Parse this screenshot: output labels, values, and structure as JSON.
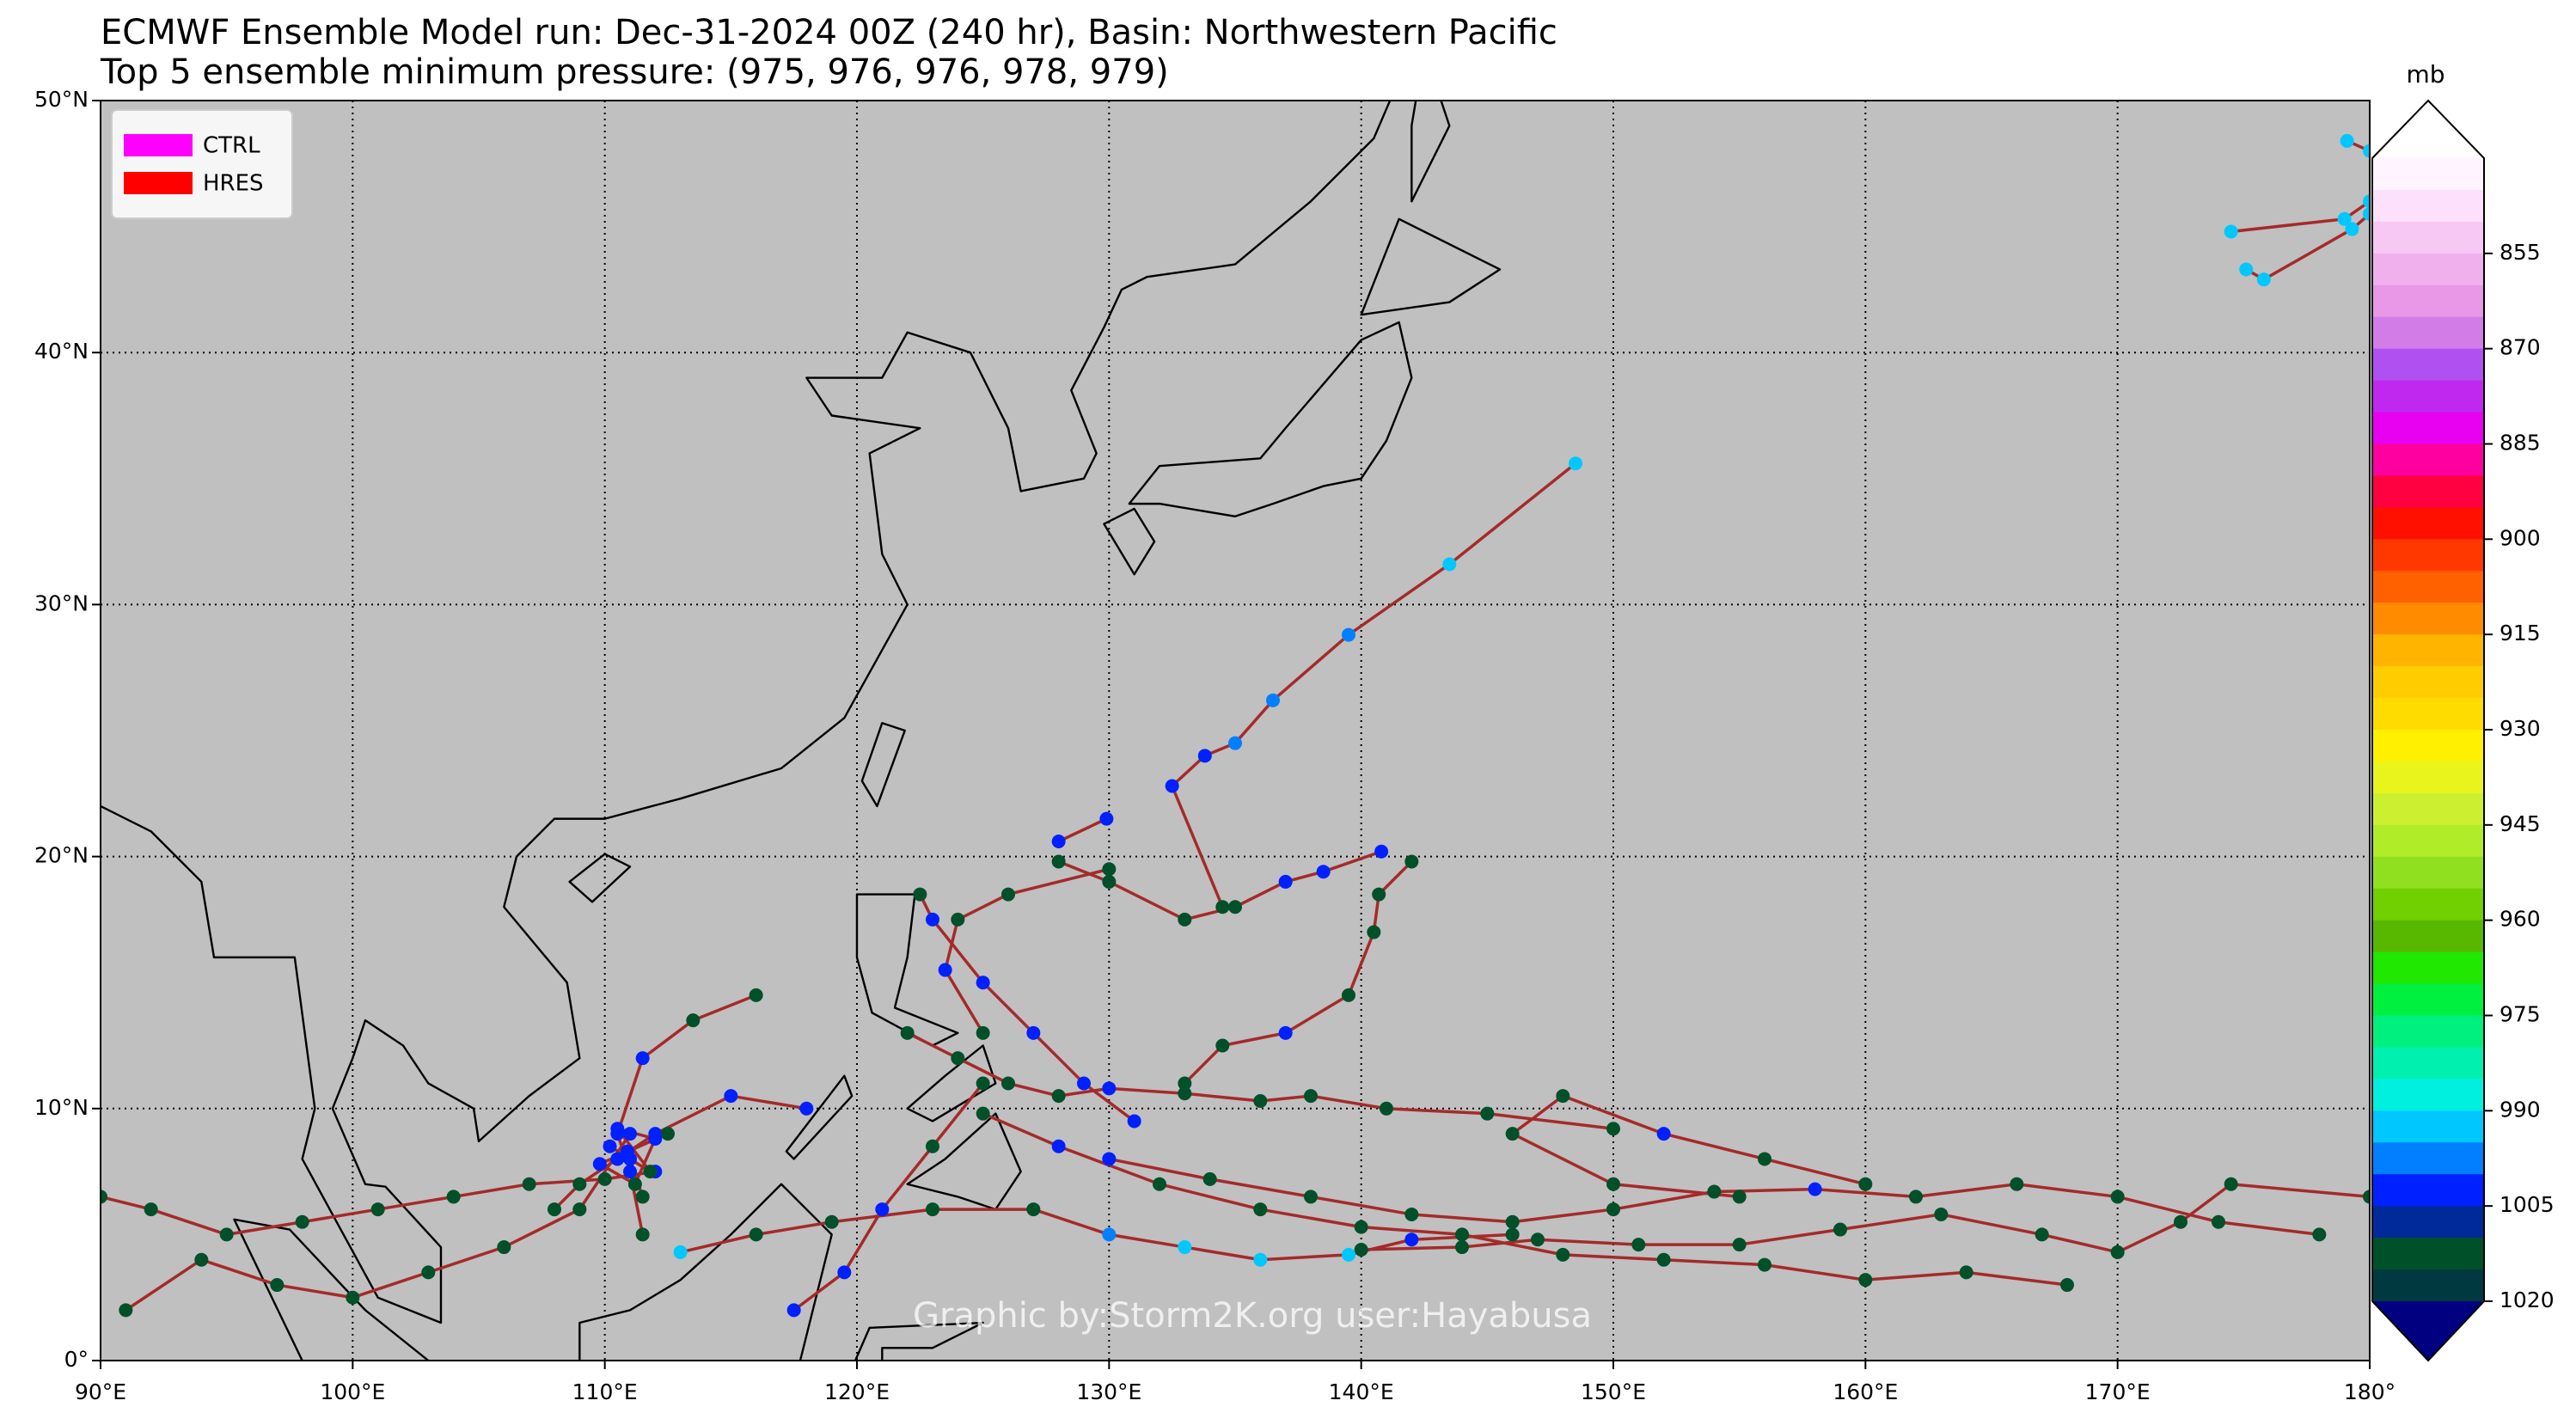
{
  "header": {
    "title": "ECMWF Ensemble Model run: Dec-31-2024 00Z (240 hr), Basin: Northwestern Pacific",
    "subtitle": "Top 5 ensemble minimum pressure: (975, 976, 976, 978, 979)"
  },
  "map": {
    "lonlim": [
      90,
      180
    ],
    "latlim": [
      0,
      50
    ],
    "grid": true,
    "lon_ticks": [
      {
        "value": 90,
        "label": "90°E"
      },
      {
        "value": 100,
        "label": "100°E"
      },
      {
        "value": 110,
        "label": "110°E"
      },
      {
        "value": 120,
        "label": "120°E"
      },
      {
        "value": 130,
        "label": "130°E"
      },
      {
        "value": 140,
        "label": "140°E"
      },
      {
        "value": 150,
        "label": "150°E"
      },
      {
        "value": 160,
        "label": "160°E"
      },
      {
        "value": 170,
        "label": "170°E"
      },
      {
        "value": 180,
        "label": "180°"
      }
    ],
    "lat_ticks": [
      {
        "value": 0,
        "label": "0°"
      },
      {
        "value": 10,
        "label": "10°N"
      },
      {
        "value": 20,
        "label": "20°N"
      },
      {
        "value": 30,
        "label": "30°N"
      },
      {
        "value": 40,
        "label": "40°N"
      },
      {
        "value": 50,
        "label": "50°N"
      }
    ]
  },
  "legend": [
    {
      "name": "CTRL",
      "color": "#ff00ff"
    },
    {
      "name": "HRES",
      "color": "#ff0000"
    }
  ],
  "track_color": "#a52a2a",
  "tracks": [
    {
      "lon": [
        134.5,
        132.5,
        133.8,
        135,
        136.5,
        139.5,
        143.5,
        148.5
      ],
      "lat": [
        18,
        22.8,
        24,
        24.5,
        26.2,
        28.8,
        31.6,
        35.6
      ],
      "p": [
        1012,
        1003,
        1003,
        997,
        997,
        997,
        990,
        990
      ]
    },
    {
      "lon": [
        174.5,
        179,
        180
      ],
      "lat": [
        44.8,
        45.3,
        46
      ],
      "p": [
        990,
        990,
        990
      ]
    },
    {
      "lon": [
        175.1,
        175.8,
        179.3,
        180
      ],
      "lat": [
        43.3,
        42.9,
        44.9,
        45.5
      ],
      "p": [
        990,
        990,
        990,
        990
      ]
    },
    {
      "lon": [
        179.1,
        180
      ],
      "lat": [
        48.4,
        48
      ],
      "p": [
        990,
        990
      ]
    },
    {
      "lon": [
        128,
        129.9
      ],
      "lat": [
        20.6,
        21.5
      ],
      "p": [
        1003,
        1003
      ]
    },
    {
      "lon": [
        180,
        174.5,
        172.5,
        170,
        167,
        163,
        159,
        155,
        151,
        147,
        144,
        140
      ],
      "lat": [
        6.5,
        7,
        5.5,
        4.3,
        5,
        5.8,
        5.2,
        4.6,
        4.6,
        4.8,
        4.5,
        4.4
      ],
      "p": [
        1012,
        1012,
        1012,
        1012,
        1012,
        1012,
        1012,
        1012,
        1012,
        1012,
        1012,
        1012
      ]
    },
    {
      "lon": [
        178,
        174,
        170,
        166,
        162,
        158,
        154,
        150,
        146,
        142,
        138,
        134,
        130
      ],
      "lat": [
        5,
        5.5,
        6.5,
        7,
        6.5,
        6.8,
        6.7,
        6,
        5.5,
        5.8,
        6.5,
        7.2,
        8
      ],
      "p": [
        1012,
        1012,
        1012,
        1012,
        1012,
        1003,
        1012,
        1012,
        1012,
        1012,
        1012,
        1012,
        1003
      ]
    },
    {
      "lon": [
        168,
        164,
        160,
        156,
        152,
        148,
        144,
        140,
        136,
        132,
        128,
        125
      ],
      "lat": [
        3,
        3.5,
        3.2,
        3.8,
        4,
        4.2,
        5,
        5.3,
        6,
        7,
        8.5,
        9.8
      ],
      "p": [
        1012,
        1012,
        1012,
        1012,
        1012,
        1012,
        1012,
        1012,
        1012,
        1012,
        1003,
        1012
      ]
    },
    {
      "lon": [
        150,
        145,
        141,
        138,
        136,
        133,
        130,
        128,
        126,
        124,
        122
      ],
      "lat": [
        9.2,
        9.8,
        10,
        10.5,
        10.3,
        10.6,
        10.8,
        10.5,
        11,
        12,
        13
      ],
      "p": [
        1012,
        1012,
        1012,
        1012,
        1012,
        1012,
        1003,
        1012,
        1012,
        1012,
        1012
      ]
    },
    {
      "lon": [
        142,
        140.7,
        140.5,
        139.5,
        137,
        134.5,
        133
      ],
      "lat": [
        19.8,
        18.5,
        17,
        14.5,
        13,
        12.5,
        11
      ],
      "p": [
        1012,
        1012,
        1012,
        1012,
        1003,
        1012,
        1012
      ]
    },
    {
      "lon": [
        140.8,
        138.5,
        137,
        135,
        133,
        130,
        128
      ],
      "lat": [
        20.2,
        19.4,
        19,
        18,
        17.5,
        19,
        19.8
      ],
      "p": [
        1003,
        1003,
        1003,
        1012,
        1012,
        1012,
        1012
      ]
    },
    {
      "lon": [
        118,
        115,
        112,
        110.5,
        109,
        108
      ],
      "lat": [
        10,
        10.5,
        9,
        8,
        7,
        6
      ],
      "p": [
        1003,
        1003,
        1003,
        1003,
        1012,
        1012
      ]
    },
    {
      "lon": [
        116,
        113.5,
        111.5,
        110.5,
        111,
        111.5
      ],
      "lat": [
        14.5,
        13.5,
        12,
        9,
        7.5,
        5
      ],
      "p": [
        1012,
        1012,
        1003,
        1003,
        1003,
        1012
      ]
    },
    {
      "lon": [
        112,
        110,
        107,
        104,
        101,
        98,
        95,
        92,
        90
      ],
      "lat": [
        7.5,
        7.2,
        7,
        6.5,
        6,
        5.5,
        5,
        6,
        6.5
      ],
      "p": [
        1003,
        1012,
        1012,
        1012,
        1012,
        1012,
        1012,
        1012,
        1012
      ]
    },
    {
      "lon": [
        111,
        109,
        106,
        103,
        100,
        97,
        94,
        91
      ],
      "lat": [
        9,
        6,
        4.5,
        3.5,
        2.5,
        3,
        4,
        2
      ],
      "p": [
        1003,
        1012,
        1012,
        1012,
        1012,
        1012,
        1012,
        1012
      ]
    },
    {
      "lon": [
        125,
        123,
        121,
        119.5,
        117.5
      ],
      "lat": [
        11,
        8.5,
        6,
        3.5,
        2
      ],
      "p": [
        1012,
        1012,
        1003,
        1003,
        1003
      ]
    },
    {
      "lon": [
        131,
        129,
        127,
        125,
        123,
        122.5
      ],
      "lat": [
        9.5,
        11,
        13,
        15,
        17.5,
        18.5
      ],
      "p": [
        1003,
        1003,
        1003,
        1003,
        1003,
        1012
      ]
    },
    {
      "lon": [
        146,
        142,
        139.5,
        136,
        133,
        130,
        127,
        123,
        119,
        116,
        113
      ],
      "lat": [
        5,
        4.8,
        4.2,
        4,
        4.5,
        5,
        6,
        6,
        5.5,
        5,
        4.3
      ],
      "p": [
        1012,
        1003,
        990,
        990,
        990,
        997,
        1012,
        1012,
        1012,
        1012,
        990
      ]
    },
    {
      "lon": [
        130,
        126,
        124,
        123.5,
        125
      ],
      "lat": [
        19.5,
        18.5,
        17.5,
        15.5,
        13
      ],
      "p": [
        1012,
        1012,
        1012,
        1003,
        1012
      ]
    },
    {
      "lon": [
        111,
        110.2,
        111.8,
        110.5,
        112,
        111.2,
        109.8,
        112.5,
        110.9,
        111.5
      ],
      "lat": [
        8,
        8.5,
        7.5,
        9.2,
        8.8,
        7,
        7.8,
        9,
        8.3,
        6.5
      ],
      "p": [
        1003,
        1003,
        1012,
        1003,
        1003,
        1012,
        1003,
        1012,
        1003,
        1012
      ]
    },
    {
      "lon": [
        160,
        156,
        152,
        148,
        146,
        150,
        155
      ],
      "lat": [
        7,
        8,
        9,
        10.5,
        9,
        7,
        6.5
      ],
      "p": [
        1012,
        1012,
        1003,
        1012,
        1012,
        1012,
        1012
      ]
    }
  ],
  "colorbar": {
    "unit": "mb",
    "range": [
      840,
      1020
    ],
    "ticks": [
      855,
      870,
      885,
      900,
      915,
      930,
      945,
      960,
      975,
      990,
      1005,
      1020
    ],
    "colors": [
      "#fff4ff",
      "#fde0fb",
      "#f8c8f4",
      "#f0b0ee",
      "#e898e6",
      "#d27ce8",
      "#b050f0",
      "#c028f0",
      "#e800f0",
      "#ff00a0",
      "#ff0040",
      "#ff1000",
      "#ff3800",
      "#ff6000",
      "#ff8c00",
      "#ffb400",
      "#ffcc00",
      "#ffdc00",
      "#fff000",
      "#e8f41c",
      "#ccf030",
      "#b0ec28",
      "#90e020",
      "#70d000",
      "#58b800",
      "#20e800",
      "#00f040",
      "#00f080",
      "#00f0b0",
      "#00f0e0",
      "#00c8ff",
      "#0080ff",
      "#0020ff",
      "#002a9a",
      "#00502a",
      "#003a40"
    ],
    "over_color": "#ffffff",
    "under_color": "#000080"
  },
  "credit": "Graphic by:Storm2K.org user:Hayabusa"
}
